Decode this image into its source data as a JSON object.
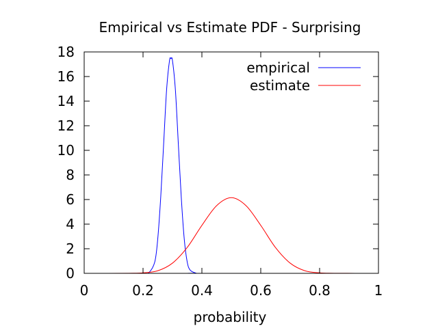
{
  "chart_data": {
    "type": "line",
    "title": "Empirical vs Estimate PDF - Surprising",
    "xlabel": "probability",
    "ylabel": "",
    "xlim": [
      0,
      1
    ],
    "ylim": [
      0,
      18
    ],
    "x_ticks": [
      "0",
      "0.2",
      "0.4",
      "0.6",
      "0.8",
      "1"
    ],
    "y_ticks": [
      "0",
      "2",
      "4",
      "6",
      "8",
      "10",
      "12",
      "14",
      "16",
      "18"
    ],
    "grid": false,
    "legend_position": "top-right",
    "series": [
      {
        "name": "empirical",
        "color": "#0000ff",
        "x": [
          0,
          0.2,
          0.22,
          0.24,
          0.25,
          0.26,
          0.27,
          0.28,
          0.29,
          0.295,
          0.3,
          0.31,
          0.32,
          0.33,
          0.34,
          0.35,
          0.36,
          0.38,
          0.4,
          1
        ],
        "y": [
          0,
          0,
          0.06,
          0.94,
          2.8,
          6.15,
          10.5,
          14.9,
          17.3,
          17.45,
          17.3,
          14.9,
          10.5,
          6.15,
          2.8,
          0.94,
          0.27,
          0.02,
          0,
          0
        ]
      },
      {
        "name": "estimate",
        "color": "#ff0000",
        "x": [
          0,
          0.15,
          0.2,
          0.25,
          0.3,
          0.35,
          0.4,
          0.45,
          0.5,
          0.55,
          0.6,
          0.65,
          0.7,
          0.75,
          0.8,
          0.85,
          1
        ],
        "y": [
          0,
          0.01,
          0.04,
          0.21,
          0.83,
          2.1,
          3.9,
          5.5,
          6.15,
          5.5,
          3.9,
          2.1,
          0.83,
          0.21,
          0.04,
          0.01,
          0
        ]
      }
    ]
  }
}
